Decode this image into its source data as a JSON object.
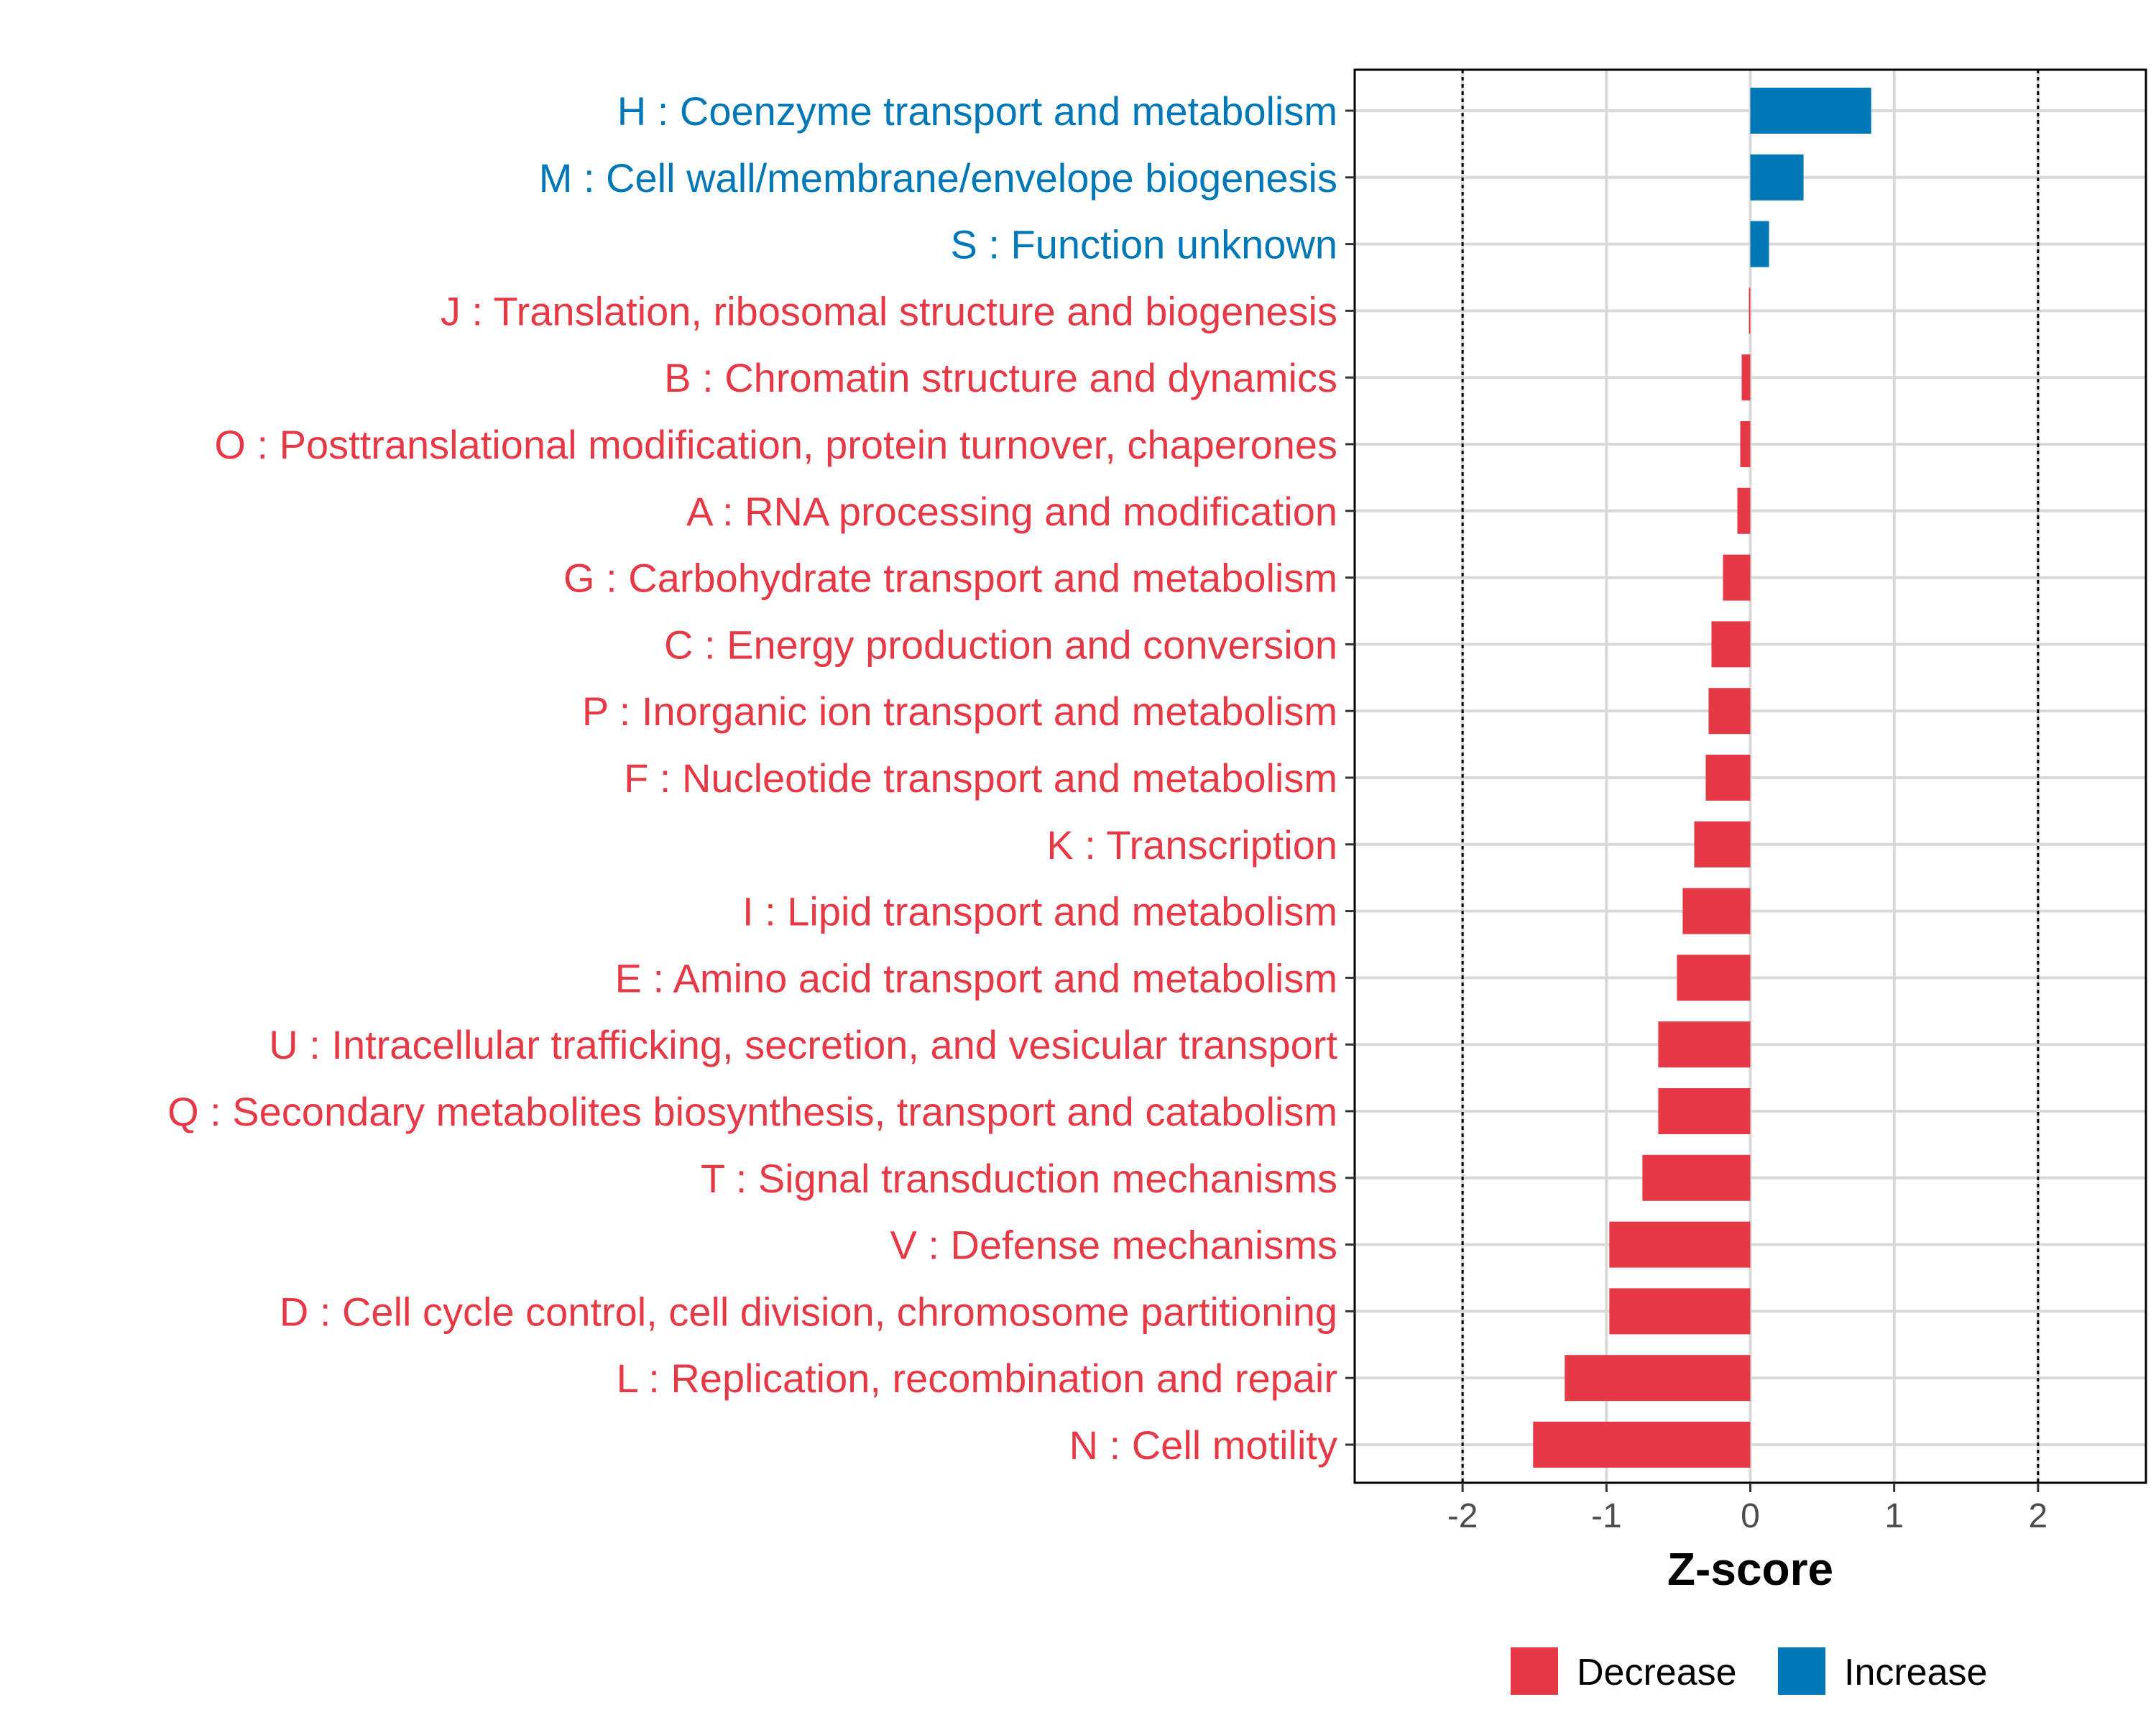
{
  "chart_data": {
    "type": "bar",
    "orientation": "horizontal",
    "xlabel": "Z-score",
    "xlim": [
      -2.75,
      2.75
    ],
    "xticks": [
      -2,
      -1,
      0,
      1,
      2
    ],
    "xtick_labels": [
      "-2",
      "-1",
      "0",
      "1",
      "2"
    ],
    "reference_lines": [
      -2,
      2
    ],
    "grid": true,
    "colors": {
      "Decrease": "#e63946",
      "Increase": "#0077b6"
    },
    "legend": {
      "position": "bottom",
      "entries": [
        {
          "label": "Decrease",
          "color": "#e63946"
        },
        {
          "label": "Increase",
          "color": "#0077b6"
        }
      ]
    },
    "categories": [
      "H : Coenzyme transport and metabolism",
      "M : Cell wall/membrane/envelope biogenesis",
      "S : Function unknown",
      "J : Translation, ribosomal structure and biogenesis",
      "B : Chromatin structure and dynamics",
      "O : Posttranslational modification, protein turnover, chaperones",
      "A : RNA processing and modification",
      "G : Carbohydrate transport and metabolism",
      "C : Energy production and conversion",
      "P : Inorganic ion transport and metabolism",
      "F : Nucleotide transport and metabolism",
      "K : Transcription",
      "I : Lipid transport and metabolism",
      "E : Amino acid transport and metabolism",
      "U : Intracellular trafficking, secretion, and vesicular transport",
      "Q : Secondary metabolites biosynthesis, transport and catabolism",
      "T : Signal transduction mechanisms",
      "V : Defense mechanisms",
      "D : Cell cycle control, cell division, chromosome partitioning",
      "L : Replication, recombination and repair",
      "N : Cell motility"
    ],
    "values": [
      0.84,
      0.37,
      0.13,
      -0.01,
      -0.06,
      -0.07,
      -0.09,
      -0.19,
      -0.27,
      -0.29,
      -0.31,
      -0.39,
      -0.47,
      -0.51,
      -0.64,
      -0.64,
      -0.75,
      -0.98,
      -0.98,
      -1.29,
      -1.51
    ],
    "direction": [
      "Increase",
      "Increase",
      "Increase",
      "Decrease",
      "Decrease",
      "Decrease",
      "Decrease",
      "Decrease",
      "Decrease",
      "Decrease",
      "Decrease",
      "Decrease",
      "Decrease",
      "Decrease",
      "Decrease",
      "Decrease",
      "Decrease",
      "Decrease",
      "Decrease",
      "Decrease",
      "Decrease"
    ]
  }
}
